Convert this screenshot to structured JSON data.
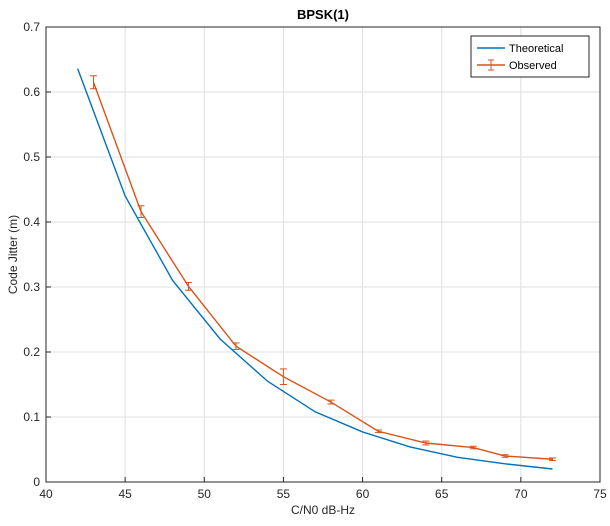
{
  "chart_data": {
    "type": "line",
    "title": "BPSK(1)",
    "xlabel": "C/N0 dB-Hz",
    "ylabel": "Code Jitter (m)",
    "xlim": [
      40,
      75
    ],
    "ylim": [
      0,
      0.7
    ],
    "xticks": [
      "40",
      "45",
      "50",
      "55",
      "60",
      "65",
      "70",
      "75"
    ],
    "yticks": [
      "0",
      "0.1",
      "0.2",
      "0.3",
      "0.4",
      "0.5",
      "0.6",
      "0.7"
    ],
    "grid": true,
    "legend_position": "top-right",
    "series": [
      {
        "name": "Theoretical",
        "color": "#0072BD",
        "x": [
          42,
          45,
          48,
          51,
          54,
          57,
          60,
          63,
          66,
          69,
          72
        ],
        "y": [
          0.636,
          0.44,
          0.31,
          0.22,
          0.155,
          0.108,
          0.077,
          0.054,
          0.038,
          0.028,
          0.02
        ]
      },
      {
        "name": "Observed",
        "color": "#D95319",
        "errorbars": true,
        "x": [
          43,
          46,
          49,
          52,
          55,
          58,
          61,
          64,
          67,
          69,
          72
        ],
        "y": [
          0.615,
          0.416,
          0.301,
          0.209,
          0.162,
          0.123,
          0.078,
          0.06,
          0.053,
          0.04,
          0.035
        ],
        "err": [
          0.01,
          0.009,
          0.006,
          0.005,
          0.012,
          0.003,
          0.002,
          0.003,
          0.002,
          0.002,
          0.002
        ]
      }
    ]
  }
}
